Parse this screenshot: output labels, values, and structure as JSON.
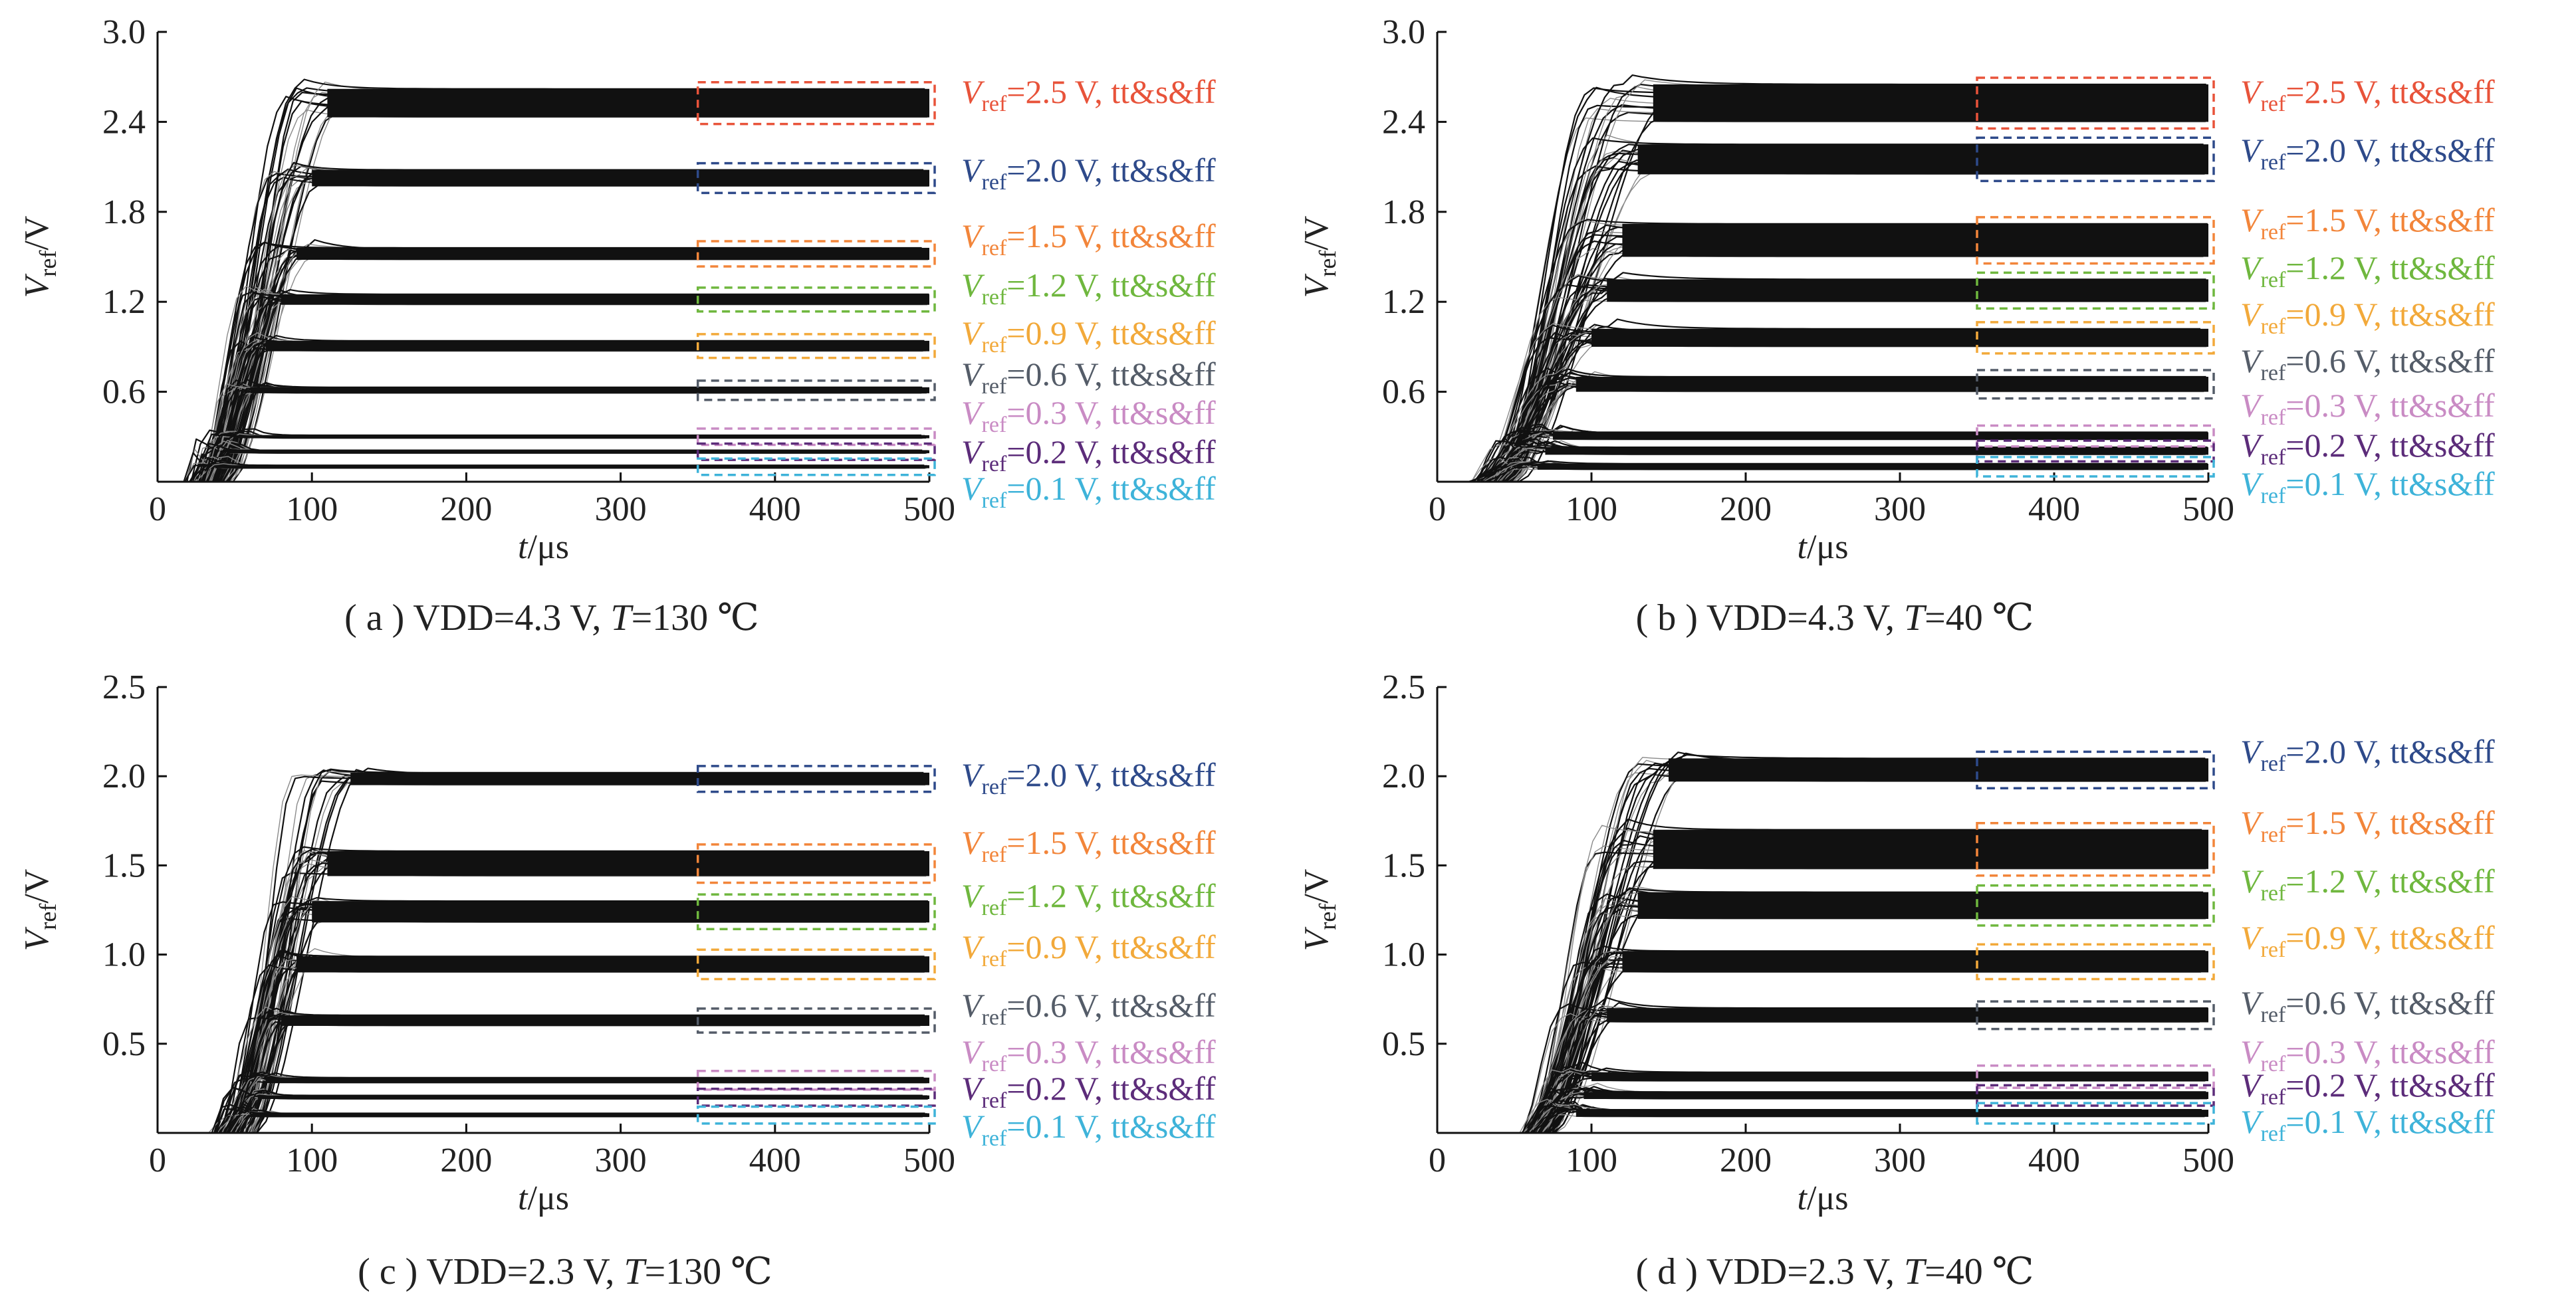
{
  "chart_data": [
    {
      "type": "line",
      "caption": {
        "prefix": "( a ) VDD=4.3 V, ",
        "t_sym": "T",
        "rest": "=130 ℃"
      },
      "xlabel": {
        "sym": "t",
        "unit": "/μs"
      },
      "ylabel": {
        "sym": "V",
        "sub": "ref",
        "unit": "/V"
      },
      "xlim": [
        0,
        500
      ],
      "ylim": [
        0,
        3.0
      ],
      "xticks": [
        "0",
        "100",
        "200",
        "300",
        "400",
        "500"
      ],
      "yticks": [
        "0.6",
        "1.2",
        "1.8",
        "2.4",
        "3.0"
      ],
      "series": [
        {
          "target": 2.5,
          "lo": 2.43,
          "hi": 2.62,
          "start": 40,
          "settle": 110,
          "color": "#e8533a",
          "label": {
            "pre": "V",
            "sub": "ref",
            "post": "=2.5 V, tt&s&ff"
          }
        },
        {
          "target": 2.0,
          "lo": 1.97,
          "hi": 2.08,
          "start": 38,
          "settle": 100,
          "color": "#2e4a8a",
          "label": {
            "pre": "V",
            "sub": "ref",
            "post": "=2.0 V, tt&s&ff"
          }
        },
        {
          "target": 1.5,
          "lo": 1.48,
          "hi": 1.56,
          "start": 36,
          "settle": 90,
          "color": "#f2853a",
          "label": {
            "pre": "V",
            "sub": "ref",
            "post": "=1.5 V, tt&s&ff"
          }
        },
        {
          "target": 1.2,
          "lo": 1.18,
          "hi": 1.25,
          "start": 34,
          "settle": 80,
          "color": "#6fb73e",
          "label": {
            "pre": "V",
            "sub": "ref",
            "post": "=1.2 V, tt&s&ff"
          }
        },
        {
          "target": 0.9,
          "lo": 0.87,
          "hi": 0.94,
          "start": 33,
          "settle": 70,
          "color": "#f2a93a",
          "label": {
            "pre": "V",
            "sub": "ref",
            "post": "=0.9 V, tt&s&ff"
          }
        },
        {
          "target": 0.6,
          "lo": 0.59,
          "hi": 0.63,
          "start": 32,
          "settle": 60,
          "color": "#545c68",
          "label": {
            "pre": "V",
            "sub": "ref",
            "post": "=0.6 V, tt&s&ff"
          }
        },
        {
          "target": 0.3,
          "lo": 0.29,
          "hi": 0.31,
          "start": 30,
          "settle": 50,
          "color": "#c98bc4",
          "label": {
            "pre": "V",
            "sub": "ref",
            "post": "=0.3 V, tt&s&ff"
          }
        },
        {
          "target": 0.2,
          "lo": 0.19,
          "hi": 0.21,
          "start": 28,
          "settle": 45,
          "color": "#5c2c7a",
          "label": {
            "pre": "V",
            "sub": "ref",
            "post": "=0.2 V, tt&s&ff"
          }
        },
        {
          "target": 0.1,
          "lo": 0.09,
          "hi": 0.11,
          "start": 25,
          "settle": 40,
          "color": "#3eb3d9",
          "label": {
            "pre": "V",
            "sub": "ref",
            "post": "=0.1 V, tt&s&ff"
          }
        }
      ]
    },
    {
      "type": "line",
      "caption": {
        "prefix": "( b ) VDD=4.3 V, ",
        "t_sym": "T",
        "rest": "=40 ℃"
      },
      "xlabel": {
        "sym": "t",
        "unit": "/μs"
      },
      "ylabel": {
        "sym": "V",
        "sub": "ref",
        "unit": "/V"
      },
      "xlim": [
        0,
        500
      ],
      "ylim": [
        0,
        3.0
      ],
      "xticks": [
        "0",
        "100",
        "200",
        "300",
        "400",
        "500"
      ],
      "yticks": [
        "0.6",
        "1.2",
        "1.8",
        "2.4",
        "3.0"
      ],
      "series": [
        {
          "target": 2.5,
          "lo": 2.4,
          "hi": 2.65,
          "start": 45,
          "settle": 140,
          "color": "#e8533a",
          "label": {
            "pre": "V",
            "sub": "ref",
            "post": "=2.5 V, tt&s&ff"
          }
        },
        {
          "target": 2.0,
          "lo": 2.05,
          "hi": 2.25,
          "start": 43,
          "settle": 130,
          "color": "#2e4a8a",
          "label": {
            "pre": "V",
            "sub": "ref",
            "post": "=2.0 V, tt&s&ff"
          }
        },
        {
          "target": 1.5,
          "lo": 1.5,
          "hi": 1.72,
          "start": 40,
          "settle": 120,
          "color": "#f2853a",
          "label": {
            "pre": "V",
            "sub": "ref",
            "post": "=1.5 V, tt&s&ff"
          }
        },
        {
          "target": 1.2,
          "lo": 1.2,
          "hi": 1.35,
          "start": 38,
          "settle": 110,
          "color": "#6fb73e",
          "label": {
            "pre": "V",
            "sub": "ref",
            "post": "=1.2 V, tt&s&ff"
          }
        },
        {
          "target": 0.9,
          "lo": 0.9,
          "hi": 1.02,
          "start": 36,
          "settle": 100,
          "color": "#f2a93a",
          "label": {
            "pre": "V",
            "sub": "ref",
            "post": "=0.9 V, tt&s&ff"
          }
        },
        {
          "target": 0.6,
          "lo": 0.6,
          "hi": 0.7,
          "start": 35,
          "settle": 90,
          "color": "#545c68",
          "label": {
            "pre": "V",
            "sub": "ref",
            "post": "=0.6 V, tt&s&ff"
          }
        },
        {
          "target": 0.3,
          "lo": 0.28,
          "hi": 0.33,
          "start": 33,
          "settle": 75,
          "color": "#c98bc4",
          "label": {
            "pre": "V",
            "sub": "ref",
            "post": "=0.3 V, tt&s&ff"
          }
        },
        {
          "target": 0.2,
          "lo": 0.18,
          "hi": 0.23,
          "start": 31,
          "settle": 70,
          "color": "#5c2c7a",
          "label": {
            "pre": "V",
            "sub": "ref",
            "post": "=0.2 V, tt&s&ff"
          }
        },
        {
          "target": 0.1,
          "lo": 0.08,
          "hi": 0.12,
          "start": 28,
          "settle": 65,
          "color": "#3eb3d9",
          "label": {
            "pre": "V",
            "sub": "ref",
            "post": "=0.1 V, tt&s&ff"
          }
        }
      ]
    },
    {
      "type": "line",
      "caption": {
        "prefix": "( c ) VDD=2.3 V, ",
        "t_sym": "T",
        "rest": "=130 ℃"
      },
      "xlabel": {
        "sym": "t",
        "unit": "/μs"
      },
      "ylabel": {
        "sym": "V",
        "sub": "ref",
        "unit": "/V"
      },
      "xlim": [
        0,
        500
      ],
      "ylim": [
        0,
        2.5
      ],
      "xticks": [
        "0",
        "100",
        "200",
        "300",
        "400",
        "500"
      ],
      "yticks": [
        "0.5",
        "1.0",
        "1.5",
        "2.0",
        "2.5"
      ],
      "series": [
        {
          "target": 2.0,
          "lo": 1.95,
          "hi": 2.02,
          "start": 60,
          "settle": 125,
          "color": "#2e4a8a",
          "label": {
            "pre": "V",
            "sub": "ref",
            "post": "=2.0 V, tt&s&ff"
          }
        },
        {
          "target": 1.5,
          "lo": 1.44,
          "hi": 1.58,
          "start": 55,
          "settle": 110,
          "color": "#f2853a",
          "label": {
            "pre": "V",
            "sub": "ref",
            "post": "=1.5 V, tt&s&ff"
          }
        },
        {
          "target": 1.2,
          "lo": 1.18,
          "hi": 1.3,
          "start": 52,
          "settle": 100,
          "color": "#6fb73e",
          "label": {
            "pre": "V",
            "sub": "ref",
            "post": "=1.2 V, tt&s&ff"
          }
        },
        {
          "target": 0.9,
          "lo": 0.9,
          "hi": 0.99,
          "start": 50,
          "settle": 90,
          "color": "#f2a93a",
          "label": {
            "pre": "V",
            "sub": "ref",
            "post": "=0.9 V, tt&s&ff"
          }
        },
        {
          "target": 0.6,
          "lo": 0.6,
          "hi": 0.66,
          "start": 48,
          "settle": 80,
          "color": "#545c68",
          "label": {
            "pre": "V",
            "sub": "ref",
            "post": "=0.6 V, tt&s&ff"
          }
        },
        {
          "target": 0.3,
          "lo": 0.28,
          "hi": 0.31,
          "start": 46,
          "settle": 70,
          "color": "#c98bc4",
          "label": {
            "pre": "V",
            "sub": "ref",
            "post": "=0.3 V, tt&s&ff"
          }
        },
        {
          "target": 0.2,
          "lo": 0.19,
          "hi": 0.21,
          "start": 44,
          "settle": 65,
          "color": "#5c2c7a",
          "label": {
            "pre": "V",
            "sub": "ref",
            "post": "=0.2 V, tt&s&ff"
          }
        },
        {
          "target": 0.1,
          "lo": 0.09,
          "hi": 0.11,
          "start": 42,
          "settle": 60,
          "color": "#3eb3d9",
          "label": {
            "pre": "V",
            "sub": "ref",
            "post": "=0.1 V, tt&s&ff"
          }
        }
      ]
    },
    {
      "type": "line",
      "caption": {
        "prefix": "( d ) VDD=2.3 V, ",
        "t_sym": "T",
        "rest": "=40 ℃"
      },
      "xlabel": {
        "sym": "t",
        "unit": "/μs"
      },
      "ylabel": {
        "sym": "V",
        "sub": "ref",
        "unit": "/V"
      },
      "xlim": [
        0,
        500
      ],
      "ylim": [
        0,
        2.5
      ],
      "xticks": [
        "0",
        "100",
        "200",
        "300",
        "400",
        "500"
      ],
      "yticks": [
        "0.5",
        "1.0",
        "1.5",
        "2.0",
        "2.5"
      ],
      "series": [
        {
          "target": 2.0,
          "lo": 1.97,
          "hi": 2.1,
          "start": 70,
          "settle": 150,
          "color": "#2e4a8a",
          "label": {
            "pre": "V",
            "sub": "ref",
            "post": "=2.0 V, tt&s&ff"
          }
        },
        {
          "target": 1.5,
          "lo": 1.48,
          "hi": 1.7,
          "start": 68,
          "settle": 140,
          "color": "#f2853a",
          "label": {
            "pre": "V",
            "sub": "ref",
            "post": "=1.5 V, tt&s&ff"
          }
        },
        {
          "target": 1.2,
          "lo": 1.2,
          "hi": 1.35,
          "start": 66,
          "settle": 130,
          "color": "#6fb73e",
          "label": {
            "pre": "V",
            "sub": "ref",
            "post": "=1.2 V, tt&s&ff"
          }
        },
        {
          "target": 0.9,
          "lo": 0.9,
          "hi": 1.02,
          "start": 64,
          "settle": 120,
          "color": "#f2a93a",
          "label": {
            "pre": "V",
            "sub": "ref",
            "post": "=0.9 V, tt&s&ff"
          }
        },
        {
          "target": 0.6,
          "lo": 0.62,
          "hi": 0.7,
          "start": 62,
          "settle": 110,
          "color": "#545c68",
          "label": {
            "pre": "V",
            "sub": "ref",
            "post": "=0.6 V, tt&s&ff"
          }
        },
        {
          "target": 0.3,
          "lo": 0.29,
          "hi": 0.34,
          "start": 62,
          "settle": 100,
          "color": "#c98bc4",
          "label": {
            "pre": "V",
            "sub": "ref",
            "post": "=0.3 V, tt&s&ff"
          }
        },
        {
          "target": 0.2,
          "lo": 0.19,
          "hi": 0.23,
          "start": 62,
          "settle": 95,
          "color": "#5c2c7a",
          "label": {
            "pre": "V",
            "sub": "ref",
            "post": "=0.2 V, tt&s&ff"
          }
        },
        {
          "target": 0.1,
          "lo": 0.09,
          "hi": 0.13,
          "start": 62,
          "settle": 90,
          "color": "#3eb3d9",
          "label": {
            "pre": "V",
            "sub": "ref",
            "post": "=0.1 V, tt&s&ff"
          }
        }
      ]
    }
  ],
  "style": {
    "trace_color": "#111111",
    "trace_light": "#8a8a8a",
    "axis_color": "#111111",
    "text_color": "#222222"
  }
}
